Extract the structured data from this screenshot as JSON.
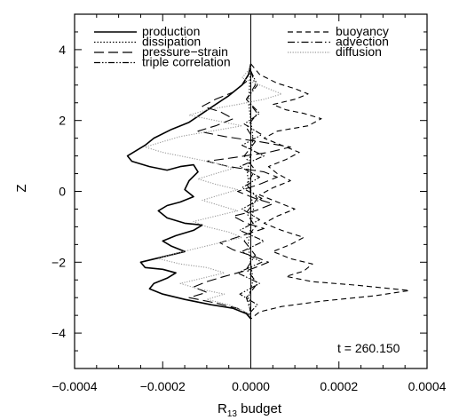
{
  "chart_data": {
    "type": "line",
    "title": "",
    "xlabel": "R",
    "xlabel_sub": "13",
    "xlabel_suffix": " budget",
    "ylabel": "Z",
    "xlim": [
      -0.0004,
      0.0004
    ],
    "ylim": [
      -5,
      5
    ],
    "x_ticks": [
      -0.0004,
      -0.0002,
      0.0,
      0.0002,
      0.0004
    ],
    "x_tick_labels": [
      "−0.0004",
      "−0.0002",
      "0.0000",
      "0.0002",
      "0.0004"
    ],
    "y_ticks": [
      -4,
      -2,
      0,
      2,
      4
    ],
    "y_tick_labels": [
      "−4",
      "−2",
      "0",
      "2",
      "4"
    ],
    "grid": false,
    "annotation": "t = 260.150",
    "legend_left": [
      "production",
      "dissipation",
      "pressure−strain",
      "triple correlation"
    ],
    "legend_right": [
      "buoyancy",
      "advection",
      "diffusion"
    ],
    "series": [
      {
        "name": "production",
        "style": "solid",
        "color": "#000000",
        "points": [
          [
            0.0,
            3.6
          ],
          [
            -5e-06,
            3.3
          ],
          [
            -2e-05,
            3.0
          ],
          [
            -5e-05,
            2.7
          ],
          [
            -8e-05,
            2.45
          ],
          [
            -0.00011,
            2.2
          ],
          [
            -0.00014,
            1.95
          ],
          [
            -0.00018,
            1.75
          ],
          [
            -0.00022,
            1.5
          ],
          [
            -0.00024,
            1.3
          ],
          [
            -0.00026,
            1.15
          ],
          [
            -0.00028,
            1.0
          ],
          [
            -0.00027,
            0.85
          ],
          [
            -0.00023,
            0.7
          ],
          [
            -0.00019,
            0.6
          ],
          [
            -0.00016,
            0.7
          ],
          [
            -0.00013,
            0.75
          ],
          [
            -0.00012,
            0.55
          ],
          [
            -0.00014,
            0.3
          ],
          [
            -0.00015,
            0.05
          ],
          [
            -0.00013,
            -0.15
          ],
          [
            -0.00016,
            -0.3
          ],
          [
            -0.00019,
            -0.4
          ],
          [
            -0.00021,
            -0.55
          ],
          [
            -0.00019,
            -0.75
          ],
          [
            -0.00015,
            -0.9
          ],
          [
            -0.00011,
            -0.95
          ],
          [
            -0.00013,
            -1.1
          ],
          [
            -0.00017,
            -1.25
          ],
          [
            -0.0002,
            -1.4
          ],
          [
            -0.00018,
            -1.55
          ],
          [
            -0.00015,
            -1.7
          ],
          [
            -0.0002,
            -1.85
          ],
          [
            -0.00025,
            -2.0
          ],
          [
            -0.00024,
            -2.15
          ],
          [
            -0.0002,
            -2.2
          ],
          [
            -0.00017,
            -2.3
          ],
          [
            -0.00019,
            -2.45
          ],
          [
            -0.00022,
            -2.6
          ],
          [
            -0.00023,
            -2.75
          ],
          [
            -0.0002,
            -2.9
          ],
          [
            -0.00015,
            -3.05
          ],
          [
            -9e-05,
            -3.2
          ],
          [
            -4e-05,
            -3.3
          ],
          [
            -1e-05,
            -3.45
          ],
          [
            0.0,
            -3.6
          ]
        ]
      },
      {
        "name": "dissipation",
        "style": "dotted",
        "color": "#000000",
        "points": [
          [
            0.0,
            3.6
          ],
          [
            -5e-06,
            2.5
          ],
          [
            5e-06,
            1.5
          ],
          [
            -8e-06,
            0.5
          ],
          [
            6e-06,
            -0.5
          ],
          [
            -6e-06,
            -1.5
          ],
          [
            5e-06,
            -2.5
          ],
          [
            -5e-06,
            -3.0
          ],
          [
            0.0,
            -3.6
          ]
        ]
      },
      {
        "name": "pressure−strain",
        "style": "longdash",
        "color": "#000000",
        "points": [
          [
            0.0,
            3.5
          ],
          [
            -1e-05,
            3.1
          ],
          [
            -4e-05,
            2.8
          ],
          [
            -8e-05,
            2.6
          ],
          [
            -0.00011,
            2.4
          ],
          [
            -7e-05,
            2.25
          ],
          [
            -4e-05,
            2.05
          ],
          [
            -8e-05,
            1.85
          ],
          [
            -0.00012,
            1.7
          ],
          [
            -6e-05,
            1.55
          ],
          [
            2e-05,
            1.4
          ],
          [
            9e-05,
            1.25
          ],
          [
            4e-05,
            1.1
          ],
          [
            -4e-05,
            0.95
          ],
          [
            -0.0001,
            0.85
          ],
          [
            -5e-05,
            0.7
          ],
          [
            3e-05,
            0.55
          ],
          [
            6e-05,
            0.4
          ],
          [
            2e-05,
            0.2
          ],
          [
            -3e-05,
            0.0
          ],
          [
            1e-05,
            -0.2
          ],
          [
            5e-05,
            -0.35
          ],
          [
            1e-05,
            -0.55
          ],
          [
            -4e-05,
            -0.7
          ],
          [
            -1e-05,
            -0.9
          ],
          [
            3e-05,
            -1.05
          ],
          [
            -2e-05,
            -1.25
          ],
          [
            -7e-05,
            -1.45
          ],
          [
            -4e-05,
            -1.65
          ],
          [
            1e-05,
            -1.85
          ],
          [
            4e-05,
            -2.0
          ],
          [
            0.0,
            -2.2
          ],
          [
            -6e-05,
            -2.4
          ],
          [
            -0.0001,
            -2.55
          ],
          [
            -0.00013,
            -2.7
          ],
          [
            -0.0001,
            -2.85
          ],
          [
            -0.00014,
            -3.0
          ],
          [
            -8e-05,
            -3.15
          ],
          [
            -3e-05,
            -3.3
          ],
          [
            0.0,
            -3.5
          ]
        ]
      },
      {
        "name": "triple correlation",
        "style": "dashdotdot",
        "color": "#000000",
        "points": [
          [
            0.0,
            3.4
          ],
          [
            1.5e-05,
            3.0
          ],
          [
            -1e-05,
            2.6
          ],
          [
            2e-05,
            2.2
          ],
          [
            -1.5e-05,
            1.9
          ],
          [
            2.5e-05,
            1.6
          ],
          [
            -2e-05,
            1.3
          ],
          [
            3e-05,
            1.0
          ],
          [
            -2.5e-05,
            0.7
          ],
          [
            2e-05,
            0.4
          ],
          [
            -2e-05,
            0.1
          ],
          [
            2.5e-05,
            -0.2
          ],
          [
            -2e-05,
            -0.5
          ],
          [
            2e-05,
            -0.8
          ],
          [
            -2.5e-05,
            -1.1
          ],
          [
            3e-05,
            -1.4
          ],
          [
            -2e-05,
            -1.7
          ],
          [
            2.5e-05,
            -2.0
          ],
          [
            -3e-05,
            -2.3
          ],
          [
            2e-05,
            -2.6
          ],
          [
            -2.5e-05,
            -2.9
          ],
          [
            1.5e-05,
            -3.2
          ],
          [
            0.0,
            -3.4
          ]
        ]
      },
      {
        "name": "buoyancy",
        "style": "shortdash",
        "color": "#000000",
        "points": [
          [
            0.0,
            3.6
          ],
          [
            2e-05,
            3.3
          ],
          [
            6e-05,
            3.05
          ],
          [
            0.0001,
            2.9
          ],
          [
            0.00013,
            2.75
          ],
          [
            0.0001,
            2.6
          ],
          [
            5e-05,
            2.45
          ],
          [
            8e-05,
            2.3
          ],
          [
            0.00012,
            2.2
          ],
          [
            0.00016,
            2.05
          ],
          [
            0.00013,
            1.85
          ],
          [
            6e-05,
            1.7
          ],
          [
            3e-05,
            1.5
          ],
          [
            7e-05,
            1.3
          ],
          [
            0.00011,
            1.1
          ],
          [
            8e-05,
            0.9
          ],
          [
            4e-05,
            0.7
          ],
          [
            6e-05,
            0.5
          ],
          [
            9e-05,
            0.3
          ],
          [
            5e-05,
            0.1
          ],
          [
            2e-05,
            -0.1
          ],
          [
            6e-05,
            -0.3
          ],
          [
            0.0001,
            -0.5
          ],
          [
            6e-05,
            -0.7
          ],
          [
            3e-05,
            -0.9
          ],
          [
            7e-05,
            -1.1
          ],
          [
            0.00012,
            -1.3
          ],
          [
            9e-05,
            -1.5
          ],
          [
            5e-05,
            -1.7
          ],
          [
            9e-05,
            -1.9
          ],
          [
            0.00014,
            -2.05
          ],
          [
            0.00012,
            -2.25
          ],
          [
            8e-05,
            -2.4
          ],
          [
            0.00014,
            -2.55
          ],
          [
            0.00024,
            -2.65
          ],
          [
            0.00036,
            -2.8
          ],
          [
            0.00028,
            -2.95
          ],
          [
            0.00016,
            -3.1
          ],
          [
            7e-05,
            -3.25
          ],
          [
            2e-05,
            -3.4
          ],
          [
            0.0,
            -3.6
          ]
        ]
      },
      {
        "name": "advection",
        "style": "dashdot",
        "color": "#000000",
        "points": [
          [
            0.0,
            3.4
          ],
          [
            1e-05,
            3.0
          ],
          [
            -1e-05,
            2.6
          ],
          [
            1.5e-05,
            2.2
          ],
          [
            -1e-05,
            1.8
          ],
          [
            1e-05,
            1.4
          ],
          [
            -1.5e-05,
            1.0
          ],
          [
            1e-05,
            0.6
          ],
          [
            -1e-05,
            0.2
          ],
          [
            1.5e-05,
            -0.2
          ],
          [
            -1e-05,
            -0.6
          ],
          [
            1e-05,
            -1.0
          ],
          [
            -1.5e-05,
            -1.4
          ],
          [
            1e-05,
            -1.8
          ],
          [
            -1e-05,
            -2.2
          ],
          [
            1.5e-05,
            -2.6
          ],
          [
            -1e-05,
            -3.0
          ],
          [
            0.0,
            -3.4
          ]
        ]
      },
      {
        "name": "diffusion",
        "style": "finedot",
        "color": "#9a9a9a",
        "points": [
          [
            0.0,
            3.5
          ],
          [
            -2e-05,
            3.2
          ],
          [
            3e-05,
            2.95
          ],
          [
            7e-05,
            2.75
          ],
          [
            3e-05,
            2.6
          ],
          [
            -3e-05,
            2.45
          ],
          [
            -0.0001,
            2.3
          ],
          [
            -0.00014,
            2.15
          ],
          [
            -8e-05,
            2.0
          ],
          [
            -2e-05,
            1.85
          ],
          [
            -9e-05,
            1.7
          ],
          [
            -0.00016,
            1.55
          ],
          [
            -0.0002,
            1.4
          ],
          [
            -0.00024,
            1.25
          ],
          [
            -0.0002,
            1.1
          ],
          [
            -0.00014,
            0.95
          ],
          [
            -8e-05,
            0.8
          ],
          [
            -4e-05,
            0.65
          ],
          [
            -8e-05,
            0.5
          ],
          [
            -0.00012,
            0.35
          ],
          [
            -8e-05,
            0.2
          ],
          [
            -3e-05,
            0.05
          ],
          [
            -7e-05,
            -0.1
          ],
          [
            -0.00011,
            -0.25
          ],
          [
            -7e-05,
            -0.4
          ],
          [
            -3e-05,
            -0.55
          ],
          [
            -8e-05,
            -0.7
          ],
          [
            -0.00013,
            -0.85
          ],
          [
            -0.0001,
            -1.0
          ],
          [
            -5e-05,
            -1.15
          ],
          [
            -2e-05,
            -1.3
          ],
          [
            -7e-05,
            -1.45
          ],
          [
            -0.00012,
            -1.6
          ],
          [
            -0.00017,
            -1.75
          ],
          [
            -0.00021,
            -1.9
          ],
          [
            -0.00016,
            -2.05
          ],
          [
            -0.0001,
            -2.15
          ],
          [
            -6e-05,
            -2.3
          ],
          [
            -0.00011,
            -2.45
          ],
          [
            -0.00016,
            -2.6
          ],
          [
            -0.00012,
            -2.75
          ],
          [
            -6e-05,
            -2.9
          ],
          [
            -0.0001,
            -3.05
          ],
          [
            -5e-05,
            -3.2
          ],
          [
            -2e-05,
            -3.35
          ],
          [
            0.0,
            -3.5
          ]
        ]
      }
    ]
  }
}
